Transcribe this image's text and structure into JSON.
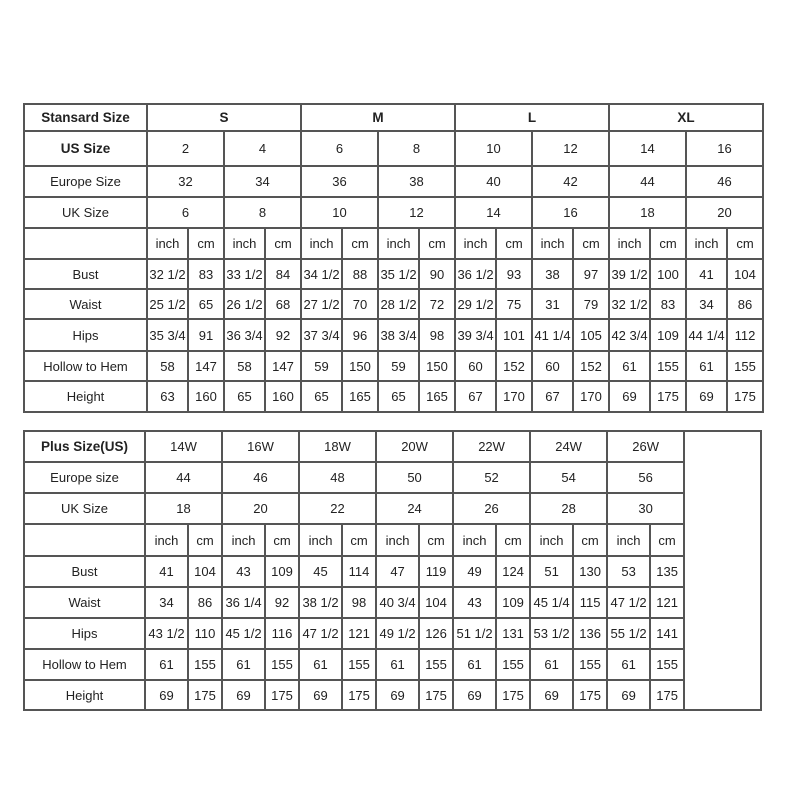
{
  "standard": {
    "header_label": "Stansard Size",
    "groups": [
      "S",
      "M",
      "L",
      "XL"
    ],
    "us_label": "US Size",
    "us": [
      "2",
      "4",
      "6",
      "8",
      "10",
      "12",
      "14",
      "16"
    ],
    "europe_label": "Europe Size",
    "europe": [
      "32",
      "34",
      "36",
      "38",
      "40",
      "42",
      "44",
      "46"
    ],
    "uk_label": "UK Size",
    "uk": [
      "6",
      "8",
      "10",
      "12",
      "14",
      "16",
      "18",
      "20"
    ],
    "unit_inch": "inch",
    "unit_cm": "cm",
    "measurements": [
      {
        "label": "Bust",
        "values": [
          "32 1/2",
          "83",
          "33 1/2",
          "84",
          "34 1/2",
          "88",
          "35 1/2",
          "90",
          "36 1/2",
          "93",
          "38",
          "97",
          "39 1/2",
          "100",
          "41",
          "104"
        ]
      },
      {
        "label": "Waist",
        "values": [
          "25 1/2",
          "65",
          "26 1/2",
          "68",
          "27 1/2",
          "70",
          "28 1/2",
          "72",
          "29 1/2",
          "75",
          "31",
          "79",
          "32 1/2",
          "83",
          "34",
          "86"
        ]
      },
      {
        "label": "Hips",
        "values": [
          "35 3/4",
          "91",
          "36 3/4",
          "92",
          "37 3/4",
          "96",
          "38 3/4",
          "98",
          "39 3/4",
          "101",
          "41 1/4",
          "105",
          "42 3/4",
          "109",
          "44 1/4",
          "112"
        ]
      },
      {
        "label": "Hollow to Hem",
        "values": [
          "58",
          "147",
          "58",
          "147",
          "59",
          "150",
          "59",
          "150",
          "60",
          "152",
          "60",
          "152",
          "61",
          "155",
          "61",
          "155"
        ]
      },
      {
        "label": "Height",
        "values": [
          "63",
          "160",
          "65",
          "160",
          "65",
          "165",
          "65",
          "165",
          "67",
          "170",
          "67",
          "170",
          "69",
          "175",
          "69",
          "175"
        ]
      }
    ]
  },
  "plus": {
    "header_label": "Plus Size(US)",
    "sizes": [
      "14W",
      "16W",
      "18W",
      "20W",
      "22W",
      "24W",
      "26W"
    ],
    "europe_label": "Europe size",
    "europe": [
      "44",
      "46",
      "48",
      "50",
      "52",
      "54",
      "56"
    ],
    "uk_label": "UK Size",
    "uk": [
      "18",
      "20",
      "22",
      "24",
      "26",
      "28",
      "30"
    ],
    "unit_inch": "inch",
    "unit_cm": "cm",
    "measurements": [
      {
        "label": "Bust",
        "values": [
          "41",
          "104",
          "43",
          "109",
          "45",
          "114",
          "47",
          "119",
          "49",
          "124",
          "51",
          "130",
          "53",
          "135"
        ]
      },
      {
        "label": "Waist",
        "values": [
          "34",
          "86",
          "36 1/4",
          "92",
          "38 1/2",
          "98",
          "40 3/4",
          "104",
          "43",
          "109",
          "45 1/4",
          "115",
          "47 1/2",
          "121"
        ]
      },
      {
        "label": "Hips",
        "values": [
          "43 1/2",
          "110",
          "45 1/2",
          "116",
          "47 1/2",
          "121",
          "49 1/2",
          "126",
          "51 1/2",
          "131",
          "53 1/2",
          "136",
          "55 1/2",
          "141"
        ]
      },
      {
        "label": "Hollow to Hem",
        "values": [
          "61",
          "155",
          "61",
          "155",
          "61",
          "155",
          "61",
          "155",
          "61",
          "155",
          "61",
          "155",
          "61",
          "155"
        ]
      },
      {
        "label": "Height",
        "values": [
          "69",
          "175",
          "69",
          "175",
          "69",
          "175",
          "69",
          "175",
          "69",
          "175",
          "69",
          "175",
          "69",
          "175"
        ]
      }
    ]
  }
}
